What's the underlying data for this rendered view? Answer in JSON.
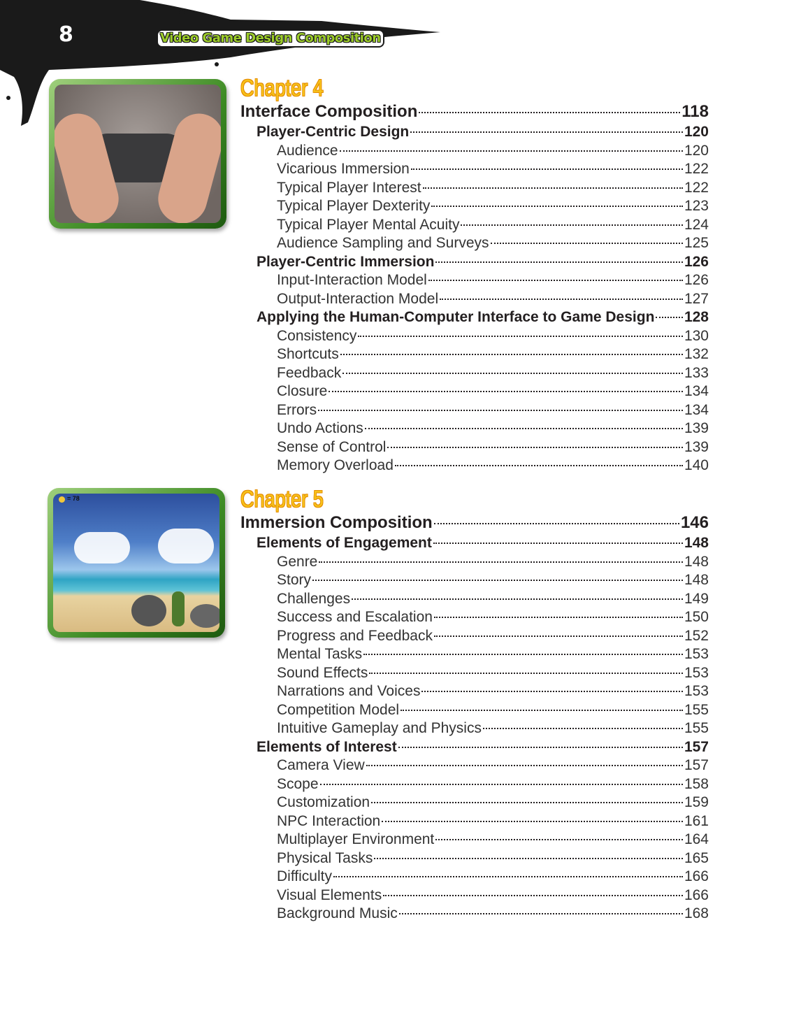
{
  "header": {
    "page_number": "8",
    "book_title": "Video Game Design Composition"
  },
  "colors": {
    "chapter_title": "#f7c21a",
    "frame_green": "#3c8a23",
    "banner": "#1a1a1a"
  },
  "images": {
    "chapter4": "game-controller-hands-photo",
    "chapter5": {
      "description_icon": "beach-game-screenshot",
      "coin_counter": "= 78"
    }
  },
  "chapters": [
    {
      "label": "Chapter 4",
      "title": "Interface Composition",
      "page": "118",
      "entries": [
        {
          "level": 2,
          "title": "Player-Centric Design",
          "page": "120"
        },
        {
          "level": 3,
          "title": "Audience",
          "page": "120"
        },
        {
          "level": 3,
          "title": "Vicarious Immersion",
          "page": "122"
        },
        {
          "level": 3,
          "title": "Typical Player Interest",
          "page": "122"
        },
        {
          "level": 3,
          "title": "Typical Player Dexterity",
          "page": "123"
        },
        {
          "level": 3,
          "title": "Typical Player Mental Acuity",
          "page": "124"
        },
        {
          "level": 3,
          "title": "Audience Sampling and Surveys",
          "page": "125"
        },
        {
          "level": 2,
          "title": "Player-Centric Immersion",
          "page": "126"
        },
        {
          "level": 3,
          "title": "Input-Interaction Model",
          "page": "126"
        },
        {
          "level": 3,
          "title": "Output-Interaction Model",
          "page": "127"
        },
        {
          "level": 2,
          "title": "Applying the Human-Computer Interface to Game Design",
          "page": "128"
        },
        {
          "level": 3,
          "title": "Consistency",
          "page": "130"
        },
        {
          "level": 3,
          "title": "Shortcuts",
          "page": "132"
        },
        {
          "level": 3,
          "title": "Feedback",
          "page": "133"
        },
        {
          "level": 3,
          "title": "Closure",
          "page": "134"
        },
        {
          "level": 3,
          "title": "Errors",
          "page": "134"
        },
        {
          "level": 3,
          "title": "Undo Actions",
          "page": "139"
        },
        {
          "level": 3,
          "title": "Sense of Control",
          "page": "139"
        },
        {
          "level": 3,
          "title": "Memory Overload",
          "page": "140"
        }
      ]
    },
    {
      "label": "Chapter 5",
      "title": "Immersion Composition",
      "page": "146",
      "entries": [
        {
          "level": 2,
          "title": "Elements of Engagement",
          "page": "148"
        },
        {
          "level": 3,
          "title": "Genre",
          "page": "148"
        },
        {
          "level": 3,
          "title": "Story",
          "page": "148"
        },
        {
          "level": 3,
          "title": "Challenges",
          "page": "149"
        },
        {
          "level": 3,
          "title": "Success and Escalation",
          "page": "150"
        },
        {
          "level": 3,
          "title": "Progress and Feedback",
          "page": "152"
        },
        {
          "level": 3,
          "title": "Mental Tasks",
          "page": "153"
        },
        {
          "level": 3,
          "title": "Sound Effects",
          "page": "153"
        },
        {
          "level": 3,
          "title": "Narrations and Voices",
          "page": "153"
        },
        {
          "level": 3,
          "title": "Competition Model",
          "page": "155"
        },
        {
          "level": 3,
          "title": "Intuitive Gameplay and Physics",
          "page": "155"
        },
        {
          "level": 2,
          "title": "Elements of Interest",
          "page": "157"
        },
        {
          "level": 3,
          "title": "Camera View",
          "page": "157"
        },
        {
          "level": 3,
          "title": "Scope",
          "page": "158"
        },
        {
          "level": 3,
          "title": "Customization",
          "page": "159"
        },
        {
          "level": 3,
          "title": "NPC Interaction",
          "page": "161"
        },
        {
          "level": 3,
          "title": "Multiplayer Environment",
          "page": "164"
        },
        {
          "level": 3,
          "title": "Physical Tasks",
          "page": "165"
        },
        {
          "level": 3,
          "title": "Difficulty",
          "page": "166"
        },
        {
          "level": 3,
          "title": "Visual Elements",
          "page": "166"
        },
        {
          "level": 3,
          "title": "Background Music",
          "page": "168"
        }
      ]
    }
  ]
}
